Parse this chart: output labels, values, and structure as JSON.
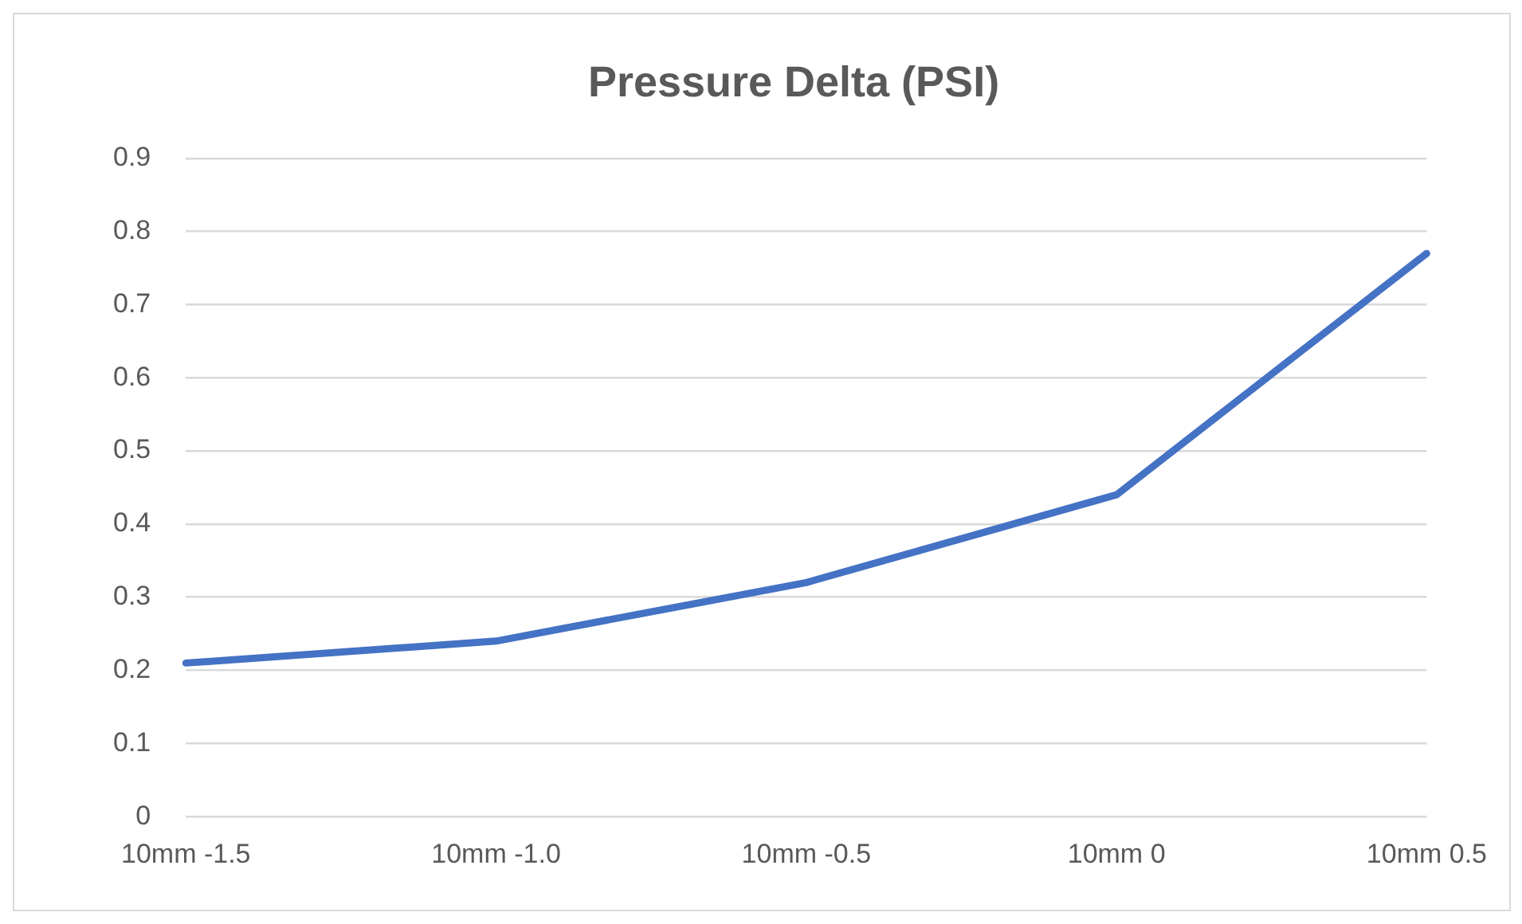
{
  "chart_data": {
    "type": "line",
    "title": "Pressure Delta (PSI)",
    "categories": [
      "10mm -1.5",
      "10mm -1.0",
      "10mm -0.5",
      "10mm 0",
      "10mm 0.5"
    ],
    "series": [
      {
        "color": "#4472c4",
        "values": [
          0.21,
          0.24,
          0.32,
          0.44,
          0.77
        ]
      }
    ],
    "ylim": [
      0,
      0.9
    ],
    "yticks": [
      0,
      0.1,
      0.2,
      0.3,
      0.4,
      0.5,
      0.6,
      0.7,
      0.8,
      0.9
    ],
    "grid": "y",
    "legend": false,
    "marker": "none",
    "line_style": "solid"
  }
}
